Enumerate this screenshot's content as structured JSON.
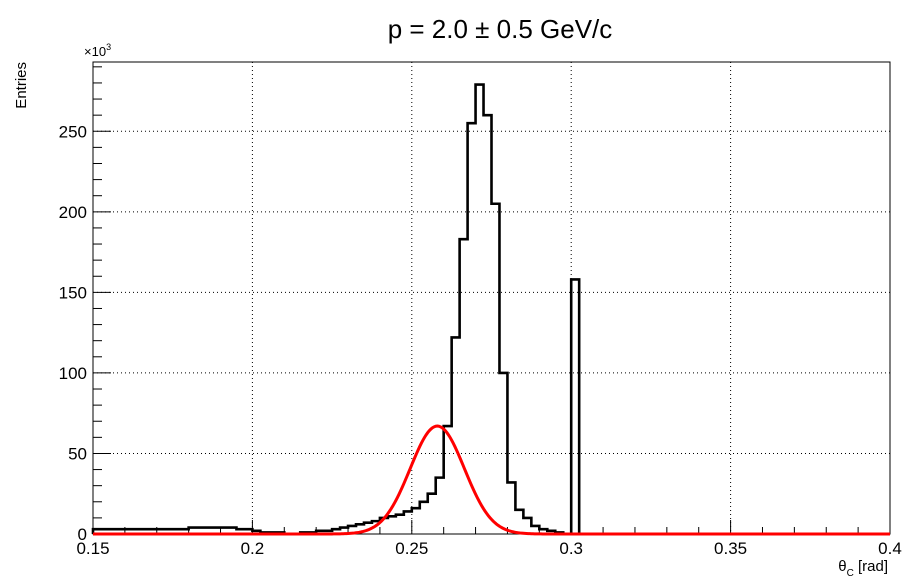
{
  "chart_data": {
    "type": "bar",
    "title": "p = 2.0 ± 0.5 GeV/c",
    "xlabel": "θ_C [rad]",
    "xlabel_main": "θ",
    "xlabel_sub": "C",
    "xlabel_unit": "[rad]",
    "ylabel": "Entries",
    "y_multiplier": "×10",
    "y_multiplier_exp": "3",
    "xlim": [
      0.15,
      0.4
    ],
    "ylim": [
      0,
      293
    ],
    "x_ticks": [
      "0.15",
      "0.2",
      "0.25",
      "0.3",
      "0.35",
      "0.4"
    ],
    "x_tick_values": [
      0.15,
      0.2,
      0.25,
      0.3,
      0.35,
      0.4
    ],
    "y_ticks": [
      "0",
      "50",
      "100",
      "150",
      "200",
      "250"
    ],
    "y_tick_values": [
      0,
      50,
      100,
      150,
      200,
      250
    ],
    "grid": true,
    "histogram": {
      "bin_width": 0.0025,
      "x_start": 0.15,
      "values": [
        3,
        3,
        3,
        3,
        3,
        3,
        3,
        3,
        3,
        3,
        3,
        3,
        4,
        4,
        4,
        4,
        4,
        4,
        3,
        3,
        2,
        1,
        1,
        1,
        0,
        0,
        1,
        1,
        2,
        2,
        3,
        4,
        5,
        6,
        7,
        8,
        10,
        11,
        12,
        14,
        16,
        20,
        25,
        35,
        67,
        122,
        183,
        255,
        279,
        260,
        205,
        100,
        32,
        15,
        10,
        5,
        3,
        2,
        1,
        0,
        158,
        0,
        0,
        0,
        0,
        0,
        0,
        0,
        0,
        0,
        0,
        0,
        0,
        0,
        0,
        0,
        0,
        0,
        0,
        0,
        0,
        0,
        0,
        0,
        0,
        0,
        0,
        0,
        0,
        0,
        0,
        0,
        0,
        0,
        0,
        0,
        0,
        0,
        0,
        0
      ],
      "color": "#000000"
    },
    "fit": {
      "type": "gaussian",
      "amplitude": 67,
      "mean": 0.258,
      "sigma": 0.0085,
      "color": "#ff0000"
    }
  }
}
